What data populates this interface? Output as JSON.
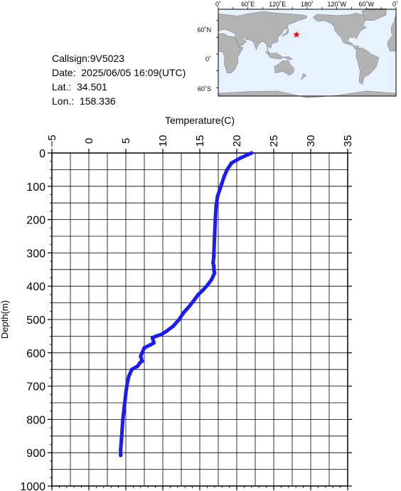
{
  "meta": {
    "callsign": "Callsign:9V5023",
    "date": "Date:  2025/06/05 16:09(UTC)",
    "lat": "Lat.:  34.501",
    "lon": "Lon.:  158.336"
  },
  "map": {
    "top_labels": [
      "0˚",
      "60˚E",
      "120˚E",
      "180˚",
      "120˚W",
      "60˚W",
      "0˚"
    ],
    "left_labels": [
      "60˚N",
      "0˚",
      "60˚S"
    ],
    "marker": {
      "lat": 34.501,
      "lon": 158.336,
      "color": "#ff0000"
    },
    "ocean_color": "#e6f2ff",
    "land_color": "#b3b3b3"
  },
  "chart_data": {
    "type": "line",
    "xlabel": "Temperature(C)",
    "ylabel": "Depth(m)",
    "xlim": [
      -5,
      35
    ],
    "ylim": [
      0,
      1000
    ],
    "y_inverted": true,
    "grid": true,
    "x_ticks": [
      "-5",
      "0",
      "5",
      "10",
      "15",
      "20",
      "25",
      "30",
      "35"
    ],
    "y_ticks": [
      "0",
      "100",
      "200",
      "300",
      "400",
      "500",
      "600",
      "700",
      "800",
      "900",
      "1000"
    ],
    "color": "#1a1aff",
    "series": [
      {
        "x": [
          22.0,
          21.5,
          20.5,
          19.3,
          18.7,
          18.3,
          18.0,
          17.7,
          17.4,
          17.2,
          17.1,
          17.0,
          16.9,
          16.9,
          16.8,
          16.9,
          16.9,
          17.0,
          16.6,
          16.1,
          15.5,
          14.8,
          14.3,
          13.6,
          12.8,
          12.2,
          11.4,
          10.5,
          9.8,
          9.1,
          8.6,
          8.8,
          8.4,
          7.5,
          7.2,
          7.0,
          7.2,
          6.9,
          6.6,
          5.8,
          5.4,
          5.2,
          5.0,
          4.9,
          4.8,
          4.7,
          4.6,
          4.5,
          4.4,
          4.3,
          4.3
        ],
        "y": [
          0,
          5,
          15,
          30,
          50,
          70,
          90,
          110,
          130,
          160,
          200,
          250,
          300,
          310,
          330,
          340,
          350,
          360,
          380,
          395,
          410,
          425,
          440,
          460,
          480,
          500,
          520,
          535,
          545,
          550,
          555,
          570,
          575,
          585,
          600,
          610,
          625,
          630,
          640,
          650,
          670,
          690,
          720,
          740,
          760,
          780,
          800,
          830,
          860,
          890,
          908
        ]
      }
    ]
  }
}
